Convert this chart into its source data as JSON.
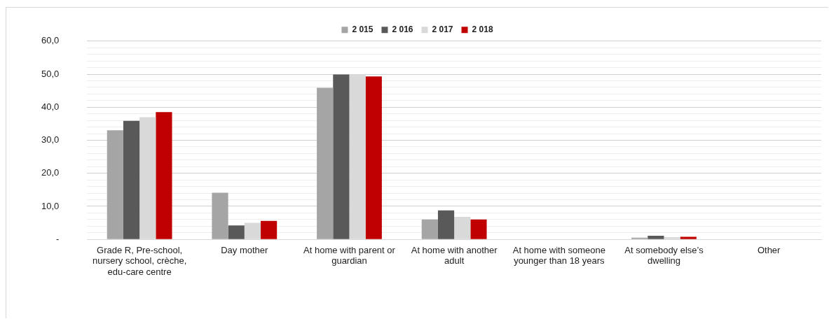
{
  "chart_data": {
    "type": "bar",
    "categories": [
      "Grade R, Pre-school, nursery school, crèche, edu-care centre",
      "Day mother",
      "At home with parent or guardian",
      "At home with another adult",
      "At home with someone younger than 18 years",
      "At somebody else’s dwelling",
      "Other"
    ],
    "series": [
      {
        "name": "2 015",
        "color": "#a5a5a5",
        "values": [
          33.0,
          14.1,
          45.9,
          6.0,
          0,
          0.5,
          0
        ]
      },
      {
        "name": "2 016",
        "color": "#595959",
        "values": [
          35.9,
          4.2,
          49.9,
          8.8,
          0,
          1.1,
          0
        ]
      },
      {
        "name": "2 017",
        "color": "#d9d9d9",
        "values": [
          37.0,
          5.0,
          50.0,
          6.8,
          0,
          0.7,
          0
        ]
      },
      {
        "name": "2 018",
        "color": "#c00000",
        "values": [
          38.5,
          5.6,
          49.3,
          6.0,
          0,
          0.8,
          0
        ]
      }
    ],
    "ylim": [
      0,
      60
    ],
    "yticks": [
      {
        "value": 0,
        "label": "-"
      },
      {
        "value": 2,
        "label": null
      },
      {
        "value": 4,
        "label": null
      },
      {
        "value": 6,
        "label": null
      },
      {
        "value": 8,
        "label": null
      },
      {
        "value": 10,
        "label": "10,0"
      },
      {
        "value": 12,
        "label": null
      },
      {
        "value": 14,
        "label": null
      },
      {
        "value": 16,
        "label": null
      },
      {
        "value": 18,
        "label": null
      },
      {
        "value": 20,
        "label": "20,0"
      },
      {
        "value": 22,
        "label": null
      },
      {
        "value": 24,
        "label": null
      },
      {
        "value": 26,
        "label": null
      },
      {
        "value": 28,
        "label": null
      },
      {
        "value": 30,
        "label": "30,0"
      },
      {
        "value": 32,
        "label": null
      },
      {
        "value": 34,
        "label": null
      },
      {
        "value": 36,
        "label": null
      },
      {
        "value": 38,
        "label": null
      },
      {
        "value": 40,
        "label": "40,0"
      },
      {
        "value": 42,
        "label": null
      },
      {
        "value": 44,
        "label": null
      },
      {
        "value": 46,
        "label": null
      },
      {
        "value": 48,
        "label": null
      },
      {
        "value": 50,
        "label": "50,0"
      },
      {
        "value": 52,
        "label": null
      },
      {
        "value": 54,
        "label": null
      },
      {
        "value": 56,
        "label": null
      },
      {
        "value": 58,
        "label": null
      },
      {
        "value": 60,
        "label": "60,0"
      }
    ],
    "grid": "y",
    "legend": "top"
  }
}
